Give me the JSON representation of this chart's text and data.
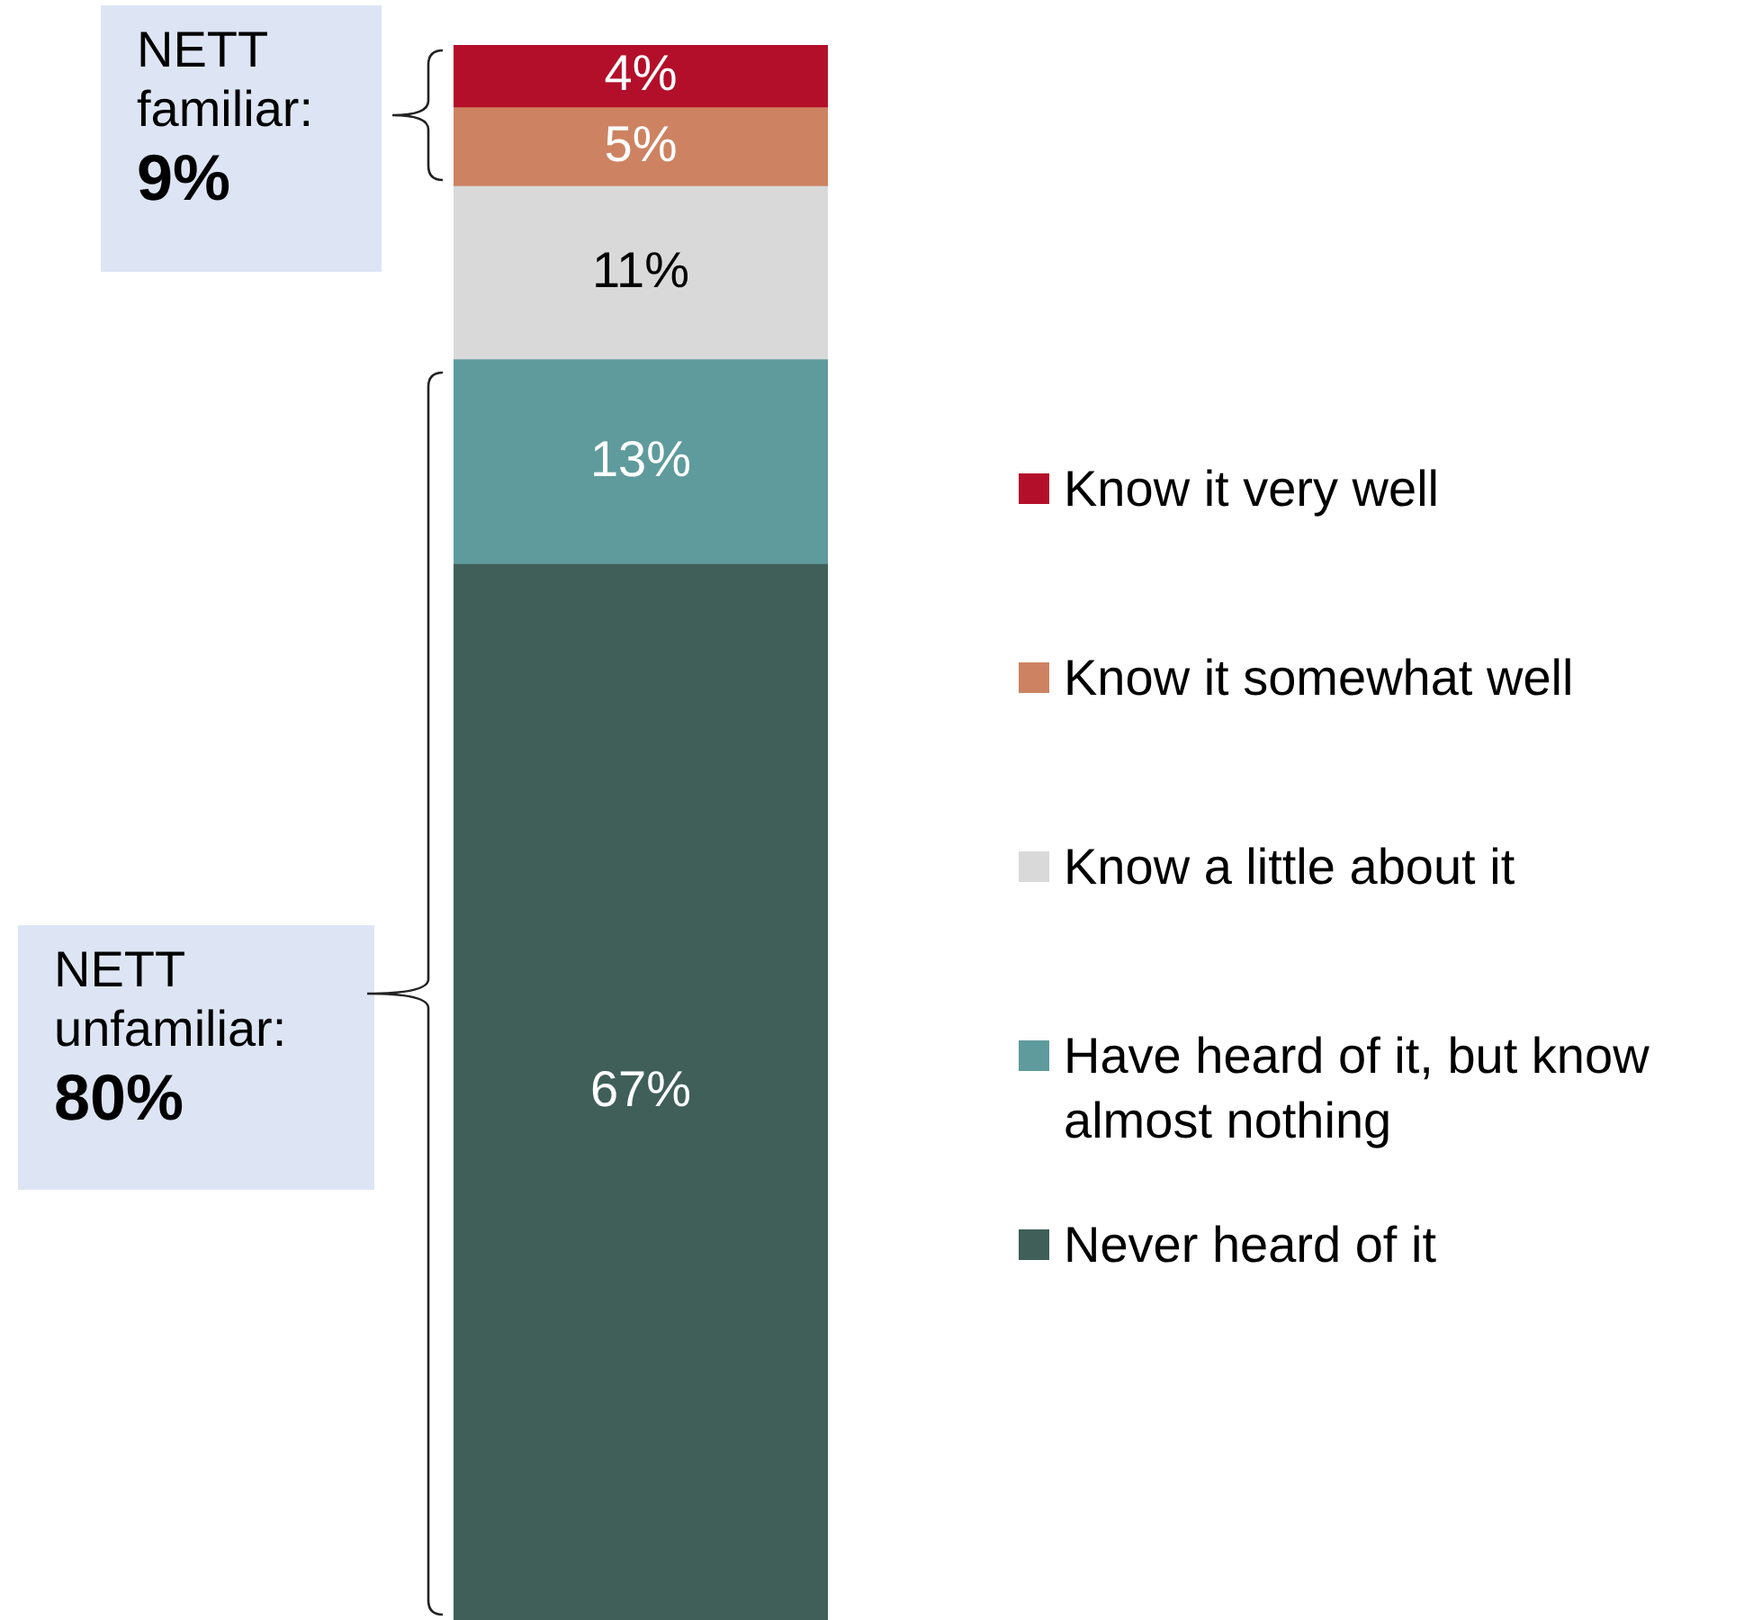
{
  "chart_data": {
    "type": "bar",
    "stacked": true,
    "categories": [
      null
    ],
    "legend": "right",
    "series": [
      {
        "name": "Never heard of it",
        "color": "#3f5f58",
        "values": [
          67
        ],
        "value_labels": [
          "67%"
        ]
      },
      {
        "name": "Have heard of it, but know almost nothing",
        "color": "#5f9b9c",
        "values": [
          13
        ],
        "value_labels": [
          "13%"
        ]
      },
      {
        "name": "Know a little about it",
        "color": "#d9d9d9",
        "values": [
          11
        ],
        "value_labels": [
          "11%"
        ]
      },
      {
        "name": "Know it somewhat well",
        "color": "#cd8362",
        "values": [
          5
        ],
        "value_labels": [
          "5%"
        ]
      },
      {
        "name": "Know it very well",
        "color": "#b40f2a",
        "values": [
          4
        ],
        "value_labels": [
          "4%"
        ]
      }
    ],
    "annotations": [
      "NETT familiar: 9%",
      "NETT unfamiliar: 80%"
    ]
  }
}
